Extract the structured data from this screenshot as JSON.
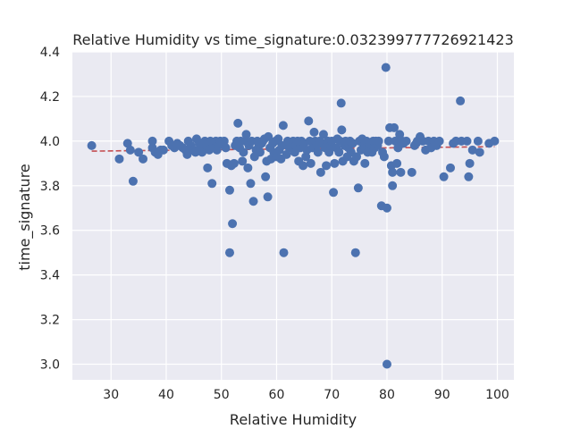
{
  "chart_data": {
    "type": "scatter",
    "title": "Relative Humidity vs time_signature:0.032399777726921423",
    "xlabel": "Relative Humidity",
    "ylabel": "time_signature",
    "xlim": [
      23,
      103
    ],
    "ylim": [
      2.93,
      4.4
    ],
    "x_ticks": [
      30,
      40,
      50,
      60,
      70,
      80,
      90,
      100
    ],
    "y_ticks": [
      3.0,
      3.2,
      3.4,
      3.6,
      3.8,
      4.0,
      4.2,
      4.4
    ],
    "x_tick_labels": [
      "30",
      "40",
      "50",
      "60",
      "70",
      "80",
      "90",
      "100"
    ],
    "y_tick_labels": [
      "3.0",
      "3.2",
      "3.4",
      "3.6",
      "3.8",
      "4.0",
      "4.2",
      "4.4"
    ],
    "grid": true,
    "background_color": "#eaeaf2",
    "point_color": "#4c72b0",
    "trend_color": "#c44e52",
    "trend_line": {
      "x": [
        26.5,
        99.5
      ],
      "y": [
        3.955,
        3.975
      ]
    },
    "points": [
      [
        26.5,
        3.98
      ],
      [
        31.5,
        3.92
      ],
      [
        33.0,
        3.99
      ],
      [
        33.5,
        3.96
      ],
      [
        34.0,
        3.82
      ],
      [
        35.0,
        3.95
      ],
      [
        35.8,
        3.92
      ],
      [
        37.5,
        4.0
      ],
      [
        37.5,
        3.97
      ],
      [
        38.0,
        3.95
      ],
      [
        38.5,
        3.94
      ],
      [
        39.0,
        3.96
      ],
      [
        39.5,
        3.96
      ],
      [
        40.5,
        4.0
      ],
      [
        41.0,
        3.98
      ],
      [
        41.5,
        3.97
      ],
      [
        42.0,
        3.99
      ],
      [
        42.5,
        3.98
      ],
      [
        43.0,
        3.97
      ],
      [
        43.5,
        3.96
      ],
      [
        43.8,
        3.94
      ],
      [
        44.0,
        4.0
      ],
      [
        44.5,
        3.98
      ],
      [
        45.0,
        3.96
      ],
      [
        45.3,
        3.95
      ],
      [
        45.5,
        4.01
      ],
      [
        46.0,
        3.99
      ],
      [
        46.3,
        3.97
      ],
      [
        46.5,
        3.95
      ],
      [
        47.0,
        4.0
      ],
      [
        47.3,
        3.98
      ],
      [
        47.5,
        3.88
      ],
      [
        47.8,
        3.96
      ],
      [
        48.0,
        4.0
      ],
      [
        48.3,
        3.81
      ],
      [
        48.5,
        3.99
      ],
      [
        48.8,
        3.97
      ],
      [
        49.0,
        4.0
      ],
      [
        49.2,
        3.96
      ],
      [
        49.5,
        3.98
      ],
      [
        49.8,
        4.0
      ],
      [
        50.0,
        3.99
      ],
      [
        50.5,
        4.0
      ],
      [
        50.8,
        3.97
      ],
      [
        51.0,
        3.9
      ],
      [
        51.5,
        3.78
      ],
      [
        51.5,
        3.5
      ],
      [
        51.8,
        3.89
      ],
      [
        52.0,
        3.63
      ],
      [
        52.3,
        3.9
      ],
      [
        52.5,
        3.98
      ],
      [
        52.8,
        4.0
      ],
      [
        53.0,
        4.08
      ],
      [
        53.3,
        3.97
      ],
      [
        53.5,
        4.0
      ],
      [
        53.8,
        3.91
      ],
      [
        54.0,
        3.95
      ],
      [
        54.3,
        4.0
      ],
      [
        54.5,
        4.03
      ],
      [
        54.8,
        3.88
      ],
      [
        55.0,
        3.98
      ],
      [
        55.3,
        3.81
      ],
      [
        55.5,
        4.0
      ],
      [
        55.8,
        3.73
      ],
      [
        56.0,
        3.93
      ],
      [
        56.3,
        3.96
      ],
      [
        56.5,
        4.0
      ],
      [
        56.8,
        3.98
      ],
      [
        57.0,
        3.95
      ],
      [
        57.3,
        3.99
      ],
      [
        57.5,
        4.0
      ],
      [
        57.8,
        4.01
      ],
      [
        58.0,
        3.84
      ],
      [
        58.2,
        3.91
      ],
      [
        58.4,
        3.75
      ],
      [
        58.5,
        4.02
      ],
      [
        58.8,
        3.97
      ],
      [
        59.0,
        3.92
      ],
      [
        59.3,
        3.99
      ],
      [
        59.5,
        3.95
      ],
      [
        59.8,
        4.0
      ],
      [
        60.0,
        3.93
      ],
      [
        60.3,
        4.01
      ],
      [
        60.5,
        3.96
      ],
      [
        60.8,
        3.92
      ],
      [
        61.0,
        3.98
      ],
      [
        61.2,
        4.07
      ],
      [
        61.3,
        3.5
      ],
      [
        61.8,
        3.94
      ],
      [
        62.0,
        4.0
      ],
      [
        62.3,
        3.97
      ],
      [
        62.5,
        3.99
      ],
      [
        63.0,
        4.0
      ],
      [
        63.3,
        3.95
      ],
      [
        63.5,
        3.98
      ],
      [
        63.8,
        4.0
      ],
      [
        64.0,
        3.91
      ],
      [
        64.3,
        3.97
      ],
      [
        64.5,
        4.0
      ],
      [
        64.8,
        3.89
      ],
      [
        65.0,
        3.99
      ],
      [
        65.3,
        3.93
      ],
      [
        65.5,
        3.96
      ],
      [
        65.8,
        4.09
      ],
      [
        66.0,
        4.0
      ],
      [
        66.2,
        3.9
      ],
      [
        66.5,
        3.97
      ],
      [
        66.8,
        4.04
      ],
      [
        67.0,
        4.0
      ],
      [
        67.3,
        3.98
      ],
      [
        67.5,
        3.95
      ],
      [
        67.8,
        4.0
      ],
      [
        68.0,
        3.86
      ],
      [
        68.3,
        3.99
      ],
      [
        68.5,
        4.03
      ],
      [
        68.8,
        3.97
      ],
      [
        69.0,
        3.89
      ],
      [
        69.3,
        4.0
      ],
      [
        69.5,
        3.95
      ],
      [
        69.8,
        3.98
      ],
      [
        70.0,
        4.0
      ],
      [
        70.3,
        3.77
      ],
      [
        70.5,
        3.9
      ],
      [
        70.8,
        3.97
      ],
      [
        71.0,
        4.01
      ],
      [
        71.3,
        3.95
      ],
      [
        71.5,
        4.0
      ],
      [
        71.7,
        4.17
      ],
      [
        71.8,
        4.05
      ],
      [
        72.0,
        3.91
      ],
      [
        72.3,
        3.98
      ],
      [
        72.5,
        4.0
      ],
      [
        72.8,
        3.93
      ],
      [
        73.0,
        3.97
      ],
      [
        73.3,
        4.0
      ],
      [
        73.5,
        3.95
      ],
      [
        73.8,
        3.99
      ],
      [
        74.0,
        3.91
      ],
      [
        74.3,
        3.5
      ],
      [
        74.5,
        3.93
      ],
      [
        74.8,
        3.79
      ],
      [
        75.0,
        4.0
      ],
      [
        75.3,
        3.96
      ],
      [
        75.5,
        4.01
      ],
      [
        75.8,
        3.98
      ],
      [
        76.0,
        3.9
      ],
      [
        76.3,
        4.0
      ],
      [
        76.5,
        3.95
      ],
      [
        76.8,
        3.97
      ],
      [
        77.0,
        3.99
      ],
      [
        77.3,
        3.95
      ],
      [
        77.5,
        4.0
      ],
      [
        77.8,
        3.97
      ],
      [
        78.0,
        4.0
      ],
      [
        78.3,
        3.98
      ],
      [
        78.5,
        4.0
      ],
      [
        79.0,
        3.71
      ],
      [
        79.2,
        3.95
      ],
      [
        79.5,
        3.93
      ],
      [
        79.8,
        4.33
      ],
      [
        80.0,
        3.7
      ],
      [
        80.0,
        3.0
      ],
      [
        80.3,
        4.0
      ],
      [
        80.5,
        4.06
      ],
      [
        80.8,
        3.89
      ],
      [
        81.0,
        3.86
      ],
      [
        81.0,
        3.8
      ],
      [
        81.3,
        4.06
      ],
      [
        81.5,
        4.0
      ],
      [
        81.8,
        3.9
      ],
      [
        82.0,
        3.97
      ],
      [
        82.3,
        4.03
      ],
      [
        82.5,
        3.86
      ],
      [
        82.8,
        4.0
      ],
      [
        83.0,
        3.99
      ],
      [
        83.5,
        4.0
      ],
      [
        84.5,
        3.86
      ],
      [
        85.0,
        3.98
      ],
      [
        85.3,
        3.99
      ],
      [
        85.5,
        4.0
      ],
      [
        86.0,
        4.02
      ],
      [
        86.5,
        4.0
      ],
      [
        87.0,
        3.96
      ],
      [
        87.5,
        4.0
      ],
      [
        88.0,
        3.97
      ],
      [
        88.5,
        4.0
      ],
      [
        89.0,
        3.98
      ],
      [
        89.5,
        4.0
      ],
      [
        90.3,
        3.84
      ],
      [
        91.5,
        3.88
      ],
      [
        92.0,
        3.99
      ],
      [
        92.5,
        4.0
      ],
      [
        93.3,
        4.18
      ],
      [
        93.5,
        4.0
      ],
      [
        94.5,
        4.0
      ],
      [
        94.8,
        3.84
      ],
      [
        95.0,
        3.9
      ],
      [
        95.5,
        3.96
      ],
      [
        96.5,
        4.0
      ],
      [
        96.8,
        3.95
      ],
      [
        98.5,
        3.99
      ],
      [
        99.5,
        4.0
      ]
    ]
  }
}
